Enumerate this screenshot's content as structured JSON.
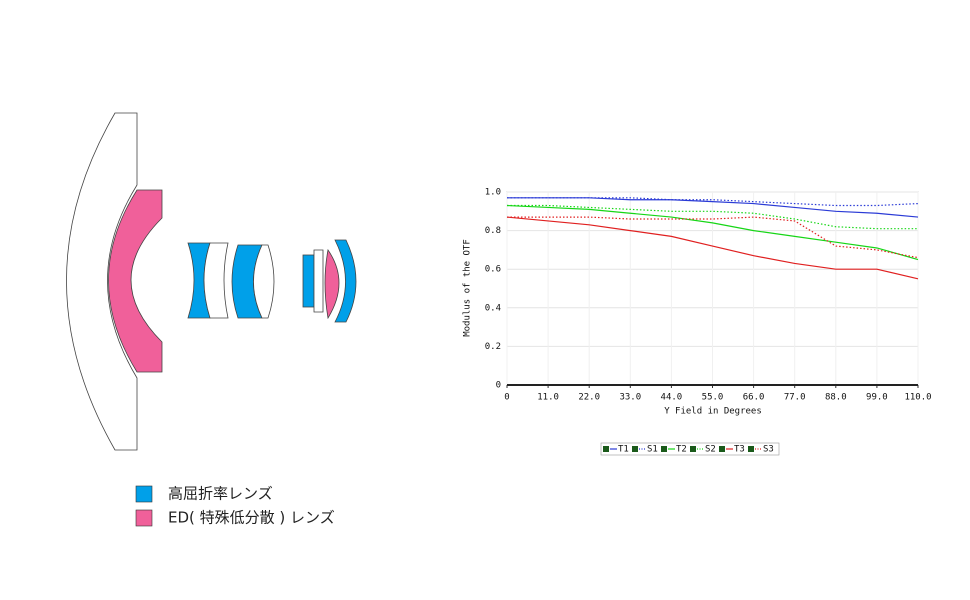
{
  "chart_data": {
    "type": "line",
    "x": [
      0,
      11,
      22,
      33,
      44,
      55,
      66,
      77,
      88,
      99,
      110
    ],
    "x_label": "Y Field in Degrees",
    "y_label": "Modulus of the OTF",
    "xlim": [
      0,
      110
    ],
    "ylim": [
      0,
      1
    ],
    "xticks": [
      0,
      {
        "value": 11,
        "label": "11.0"
      },
      {
        "value": 22,
        "label": "22.0"
      },
      {
        "value": 33,
        "label": "33.0"
      },
      {
        "value": 44,
        "label": "44.0"
      },
      {
        "value": 55,
        "label": "55.0"
      },
      {
        "value": 66,
        "label": "66.0"
      },
      {
        "value": 77,
        "label": "77.0"
      },
      {
        "value": 88,
        "label": "88.0"
      },
      {
        "value": 99,
        "label": "99.0"
      },
      {
        "value": 110,
        "label": "110.0"
      }
    ],
    "yticks": [
      0,
      0.2,
      0.4,
      0.6,
      0.8,
      {
        "value": 1,
        "label": "1.0"
      }
    ],
    "grid": true,
    "series": [
      {
        "name": "T1",
        "color": "#2b3bd6",
        "style": "solid",
        "values": [
          0.97,
          0.97,
          0.97,
          0.96,
          0.96,
          0.95,
          0.94,
          0.92,
          0.9,
          0.89,
          0.87
        ]
      },
      {
        "name": "S1",
        "color": "#2b3bd6",
        "style": "dotted",
        "values": [
          0.97,
          0.97,
          0.97,
          0.97,
          0.96,
          0.96,
          0.95,
          0.94,
          0.93,
          0.93,
          0.94
        ]
      },
      {
        "name": "T2",
        "color": "#16d616",
        "style": "solid",
        "values": [
          0.93,
          0.92,
          0.91,
          0.89,
          0.87,
          0.84,
          0.8,
          0.77,
          0.74,
          0.71,
          0.65
        ]
      },
      {
        "name": "S2",
        "color": "#16d616",
        "style": "dotted",
        "values": [
          0.93,
          0.93,
          0.92,
          0.91,
          0.9,
          0.9,
          0.89,
          0.86,
          0.82,
          0.81,
          0.81
        ]
      },
      {
        "name": "T3",
        "color": "#e02020",
        "style": "solid",
        "values": [
          0.87,
          0.85,
          0.83,
          0.8,
          0.77,
          0.72,
          0.67,
          0.63,
          0.6,
          0.6,
          0.55
        ]
      },
      {
        "name": "S3",
        "color": "#e02020",
        "style": "dotted",
        "values": [
          0.87,
          0.87,
          0.87,
          0.86,
          0.86,
          0.86,
          0.87,
          0.85,
          0.72,
          0.7,
          0.66
        ]
      }
    ]
  },
  "diagram": {
    "legend": [
      {
        "label": "高屈折率レンズ",
        "color": "#00a0e9"
      },
      {
        "label": "ED( 特殊低分散 ) レンズ",
        "color": "#f0609a"
      }
    ]
  }
}
